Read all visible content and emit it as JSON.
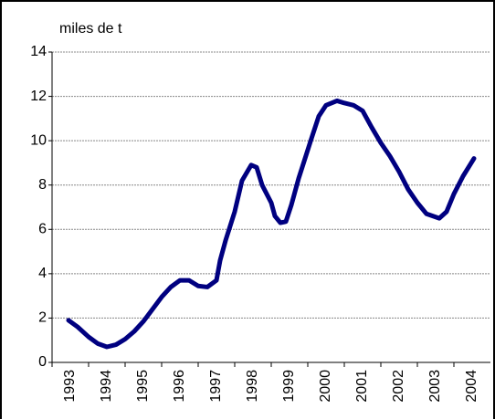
{
  "chart_data": {
    "type": "line",
    "y_label": "miles de t",
    "categories": [
      "1993",
      "1994",
      "1995",
      "1996",
      "1997",
      "1998",
      "1999",
      "2000",
      "2001",
      "2002",
      "2003",
      "2004"
    ],
    "xlim": [
      1993,
      2005
    ],
    "x": [
      1993.45,
      1993.7,
      1994.0,
      1994.25,
      1994.5,
      1994.75,
      1995.0,
      1995.25,
      1995.5,
      1995.75,
      1996.0,
      1996.25,
      1996.5,
      1996.75,
      1997.0,
      1997.25,
      1997.5,
      1997.6,
      1997.75,
      1998.0,
      1998.2,
      1998.45,
      1998.6,
      1998.75,
      1999.0,
      1999.1,
      1999.25,
      1999.4,
      1999.55,
      1999.75,
      2000.1,
      2000.3,
      2000.5,
      2000.8,
      2001.0,
      2001.25,
      2001.5,
      2001.75,
      2002.0,
      2002.25,
      2002.5,
      2002.75,
      2003.0,
      2003.25,
      2003.6,
      2003.8,
      2004.0,
      2004.25,
      2004.55
    ],
    "series": [
      {
        "color": "#000080",
        "values": [
          1.9,
          1.6,
          1.15,
          0.85,
          0.7,
          0.8,
          1.05,
          1.4,
          1.85,
          2.4,
          2.95,
          3.4,
          3.7,
          3.7,
          3.45,
          3.4,
          3.7,
          4.6,
          5.5,
          6.8,
          8.2,
          8.9,
          8.8,
          8.0,
          7.2,
          6.6,
          6.3,
          6.35,
          7.1,
          8.3,
          10.1,
          11.1,
          11.6,
          11.8,
          11.7,
          11.6,
          11.35,
          10.6,
          9.9,
          9.3,
          8.6,
          7.8,
          7.2,
          6.7,
          6.5,
          6.8,
          7.6,
          8.4,
          9.2
        ]
      }
    ],
    "ylim": [
      0,
      14
    ],
    "yticks": [
      0,
      2,
      4,
      6,
      8,
      10,
      12,
      14
    ],
    "grid": true
  }
}
